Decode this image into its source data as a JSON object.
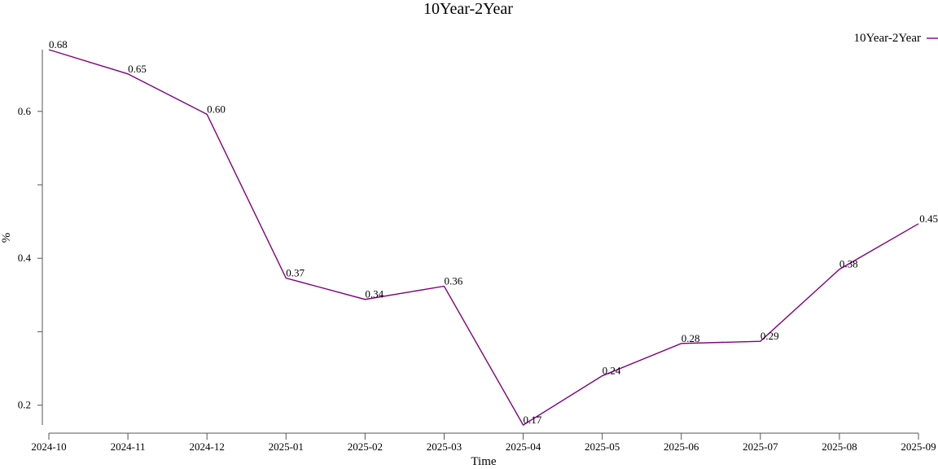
{
  "chart_data": {
    "type": "line",
    "title": "10Year-2Year",
    "xlabel": "Time",
    "ylabel": "%",
    "categories": [
      "2024-10",
      "2024-11",
      "2024-12",
      "2025-01",
      "2025-02",
      "2025-03",
      "2025-04",
      "2025-05",
      "2025-06",
      "2025-07",
      "2025-08",
      "2025-09"
    ],
    "series": [
      {
        "name": "10Year-2Year",
        "values": [
          0.684,
          0.651,
          0.596,
          0.373,
          0.344,
          0.362,
          0.173,
          0.24,
          0.284,
          0.287,
          0.385,
          0.447
        ],
        "labels": [
          "0.68",
          "0.65",
          "0.60",
          "0.37",
          "0.34",
          "0.36",
          "0.17",
          "0.24",
          "0.28",
          "0.29",
          "0.38",
          "0.45"
        ],
        "color": "#800080"
      }
    ],
    "y_ticks": [
      0.2,
      0.4,
      0.6
    ],
    "y_tick_labels": [
      "0.2",
      "0.4",
      "0.6"
    ],
    "ylim": [
      0.173,
      0.684
    ],
    "grid": false,
    "legend_position": "top-right"
  }
}
